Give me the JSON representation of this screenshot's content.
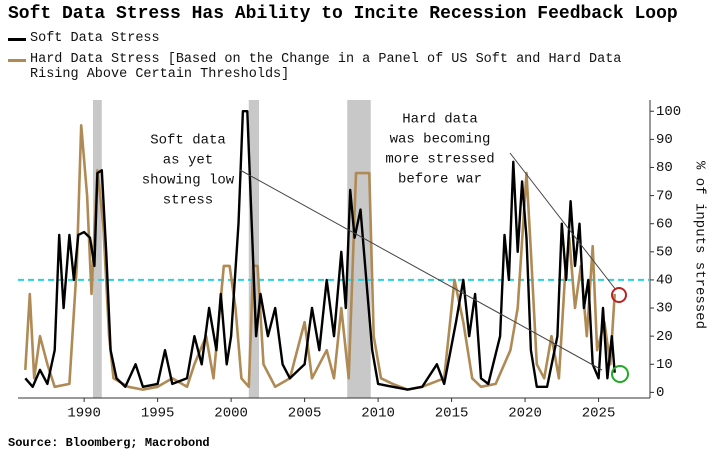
{
  "chart_data": {
    "type": "line",
    "title": "Soft Data Stress Has Ability to Incite Recession Feedback Loop",
    "y_label": "% of inputs stressed",
    "source": "Source: Bloomberg; Macrobond",
    "xlim": [
      1985.5,
      2028.5
    ],
    "xticks": [
      1990,
      1995,
      2000,
      2005,
      2010,
      2015,
      2020,
      2025
    ],
    "ylim": [
      -2,
      104
    ],
    "yticks": [
      0,
      10,
      20,
      30,
      40,
      50,
      60,
      70,
      80,
      90,
      100
    ],
    "threshold": 40,
    "threshold_color": "#22d3e0",
    "recessions": [
      [
        1990.6,
        1991.2
      ],
      [
        2001.2,
        2001.9
      ],
      [
        2007.9,
        2009.5
      ]
    ],
    "annotations": [
      {
        "lines": [
          "Soft data",
          "as yet",
          "showing low",
          "stress"
        ]
      },
      {
        "lines": [
          "Hard data",
          "was becoming",
          "more stressed",
          "before war"
        ]
      }
    ],
    "series": [
      {
        "name": "Soft Data Stress",
        "color": "#000000",
        "x": [
          1986,
          1986.5,
          1987,
          1987.5,
          1988,
          1988.3,
          1988.6,
          1989,
          1989.3,
          1989.6,
          1990,
          1990.4,
          1990.7,
          1990.9,
          1991.2,
          1991.5,
          1991.8,
          1992.2,
          1992.8,
          1993.5,
          1994,
          1995,
          1995.5,
          1996,
          1997,
          1997.5,
          1998,
          1998.5,
          1999,
          1999.3,
          1999.7,
          2000,
          2000.5,
          2000.8,
          2001.1,
          2001.4,
          2001.7,
          2002,
          2002.5,
          2003,
          2003.5,
          2004,
          2005,
          2005.5,
          2006,
          2006.5,
          2007,
          2007.5,
          2007.8,
          2008.1,
          2008.4,
          2008.8,
          2009.2,
          2009.6,
          2010,
          2011,
          2012,
          2013,
          2014,
          2014.5,
          2015.3,
          2015.8,
          2016.2,
          2016.6,
          2017,
          2017.5,
          2018.3,
          2018.6,
          2018.9,
          2019.2,
          2019.5,
          2019.8,
          2020.1,
          2020.4,
          2020.8,
          2021.5,
          2022.2,
          2022.5,
          2022.8,
          2023.1,
          2023.4,
          2023.7,
          2024,
          2024.3,
          2024.6,
          2025,
          2025.3,
          2025.6,
          2025.9,
          2026.1
        ],
        "values": [
          5,
          2,
          8,
          3,
          15,
          56,
          30,
          56,
          40,
          56,
          57,
          55,
          45,
          78,
          79,
          50,
          15,
          5,
          2,
          10,
          2,
          3,
          15,
          3,
          5,
          20,
          10,
          30,
          15,
          35,
          10,
          20,
          60,
          100,
          100,
          60,
          20,
          35,
          20,
          30,
          10,
          5,
          10,
          30,
          15,
          40,
          20,
          50,
          30,
          72,
          55,
          65,
          40,
          15,
          3,
          2,
          1,
          2,
          10,
          3,
          25,
          40,
          20,
          35,
          5,
          3,
          20,
          56,
          40,
          82,
          50,
          75,
          55,
          15,
          2,
          2,
          20,
          60,
          40,
          68,
          45,
          60,
          30,
          40,
          10,
          5,
          30,
          5,
          20,
          7
        ]
      },
      {
        "name": "Hard Data Stress [Based on the Change in a Panel of US Soft and Hard Data Rising Above Certain Thresholds]",
        "color": "#b08a55",
        "x": [
          1986,
          1986.3,
          1986.6,
          1987,
          1987.5,
          1988,
          1989,
          1989.5,
          1989.8,
          1990.2,
          1990.5,
          1990.9,
          1991.3,
          1991.7,
          1992,
          1993,
          1994,
          1995,
          1996,
          1997,
          1997.5,
          1998.3,
          1998.8,
          1999.5,
          1999.9,
          2000.3,
          2000.7,
          2001.2,
          2001.5,
          2001.8,
          2002.2,
          2003,
          2004,
          2005,
          2005.5,
          2006.5,
          2007,
          2007.5,
          2008,
          2008.5,
          2009.4,
          2009.7,
          2010.2,
          2011,
          2012,
          2013,
          2014.5,
          2015.2,
          2015.8,
          2016.4,
          2017,
          2018,
          2019,
          2019.5,
          2020.1,
          2020.4,
          2020.8,
          2021.3,
          2021.8,
          2022.3,
          2022.7,
          2023,
          2023.4,
          2023.8,
          2024.2,
          2024.6,
          2024.9,
          2025.4,
          2025.8,
          2026.1
        ],
        "values": [
          8,
          35,
          5,
          20,
          10,
          2,
          3,
          45,
          95,
          70,
          35,
          79,
          60,
          20,
          5,
          2,
          1,
          2,
          5,
          2,
          10,
          20,
          5,
          45,
          45,
          30,
          5,
          2,
          45,
          45,
          10,
          2,
          5,
          25,
          5,
          15,
          5,
          30,
          5,
          78,
          78,
          20,
          5,
          3,
          1,
          2,
          5,
          40,
          25,
          5,
          2,
          3,
          15,
          30,
          78,
          50,
          10,
          5,
          20,
          5,
          40,
          55,
          30,
          45,
          20,
          52,
          15,
          25,
          10,
          35
        ]
      }
    ]
  }
}
